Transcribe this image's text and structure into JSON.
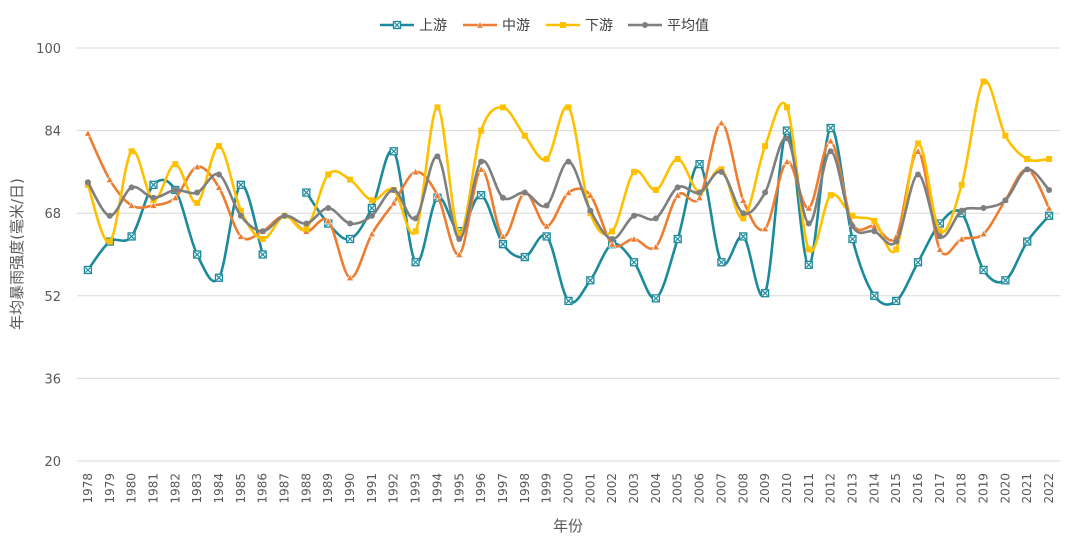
{
  "chart_data": {
    "type": "line",
    "title": "",
    "xlabel": "年份",
    "ylabel": "年均暴雨强度(毫米/日)",
    "ylim": [
      20,
      100
    ],
    "yticks": [
      20,
      36,
      52,
      68,
      84,
      100
    ],
    "grid": true,
    "legend_position": "top",
    "categories": [
      "1978",
      "1979",
      "1980",
      "1981",
      "1982",
      "1983",
      "1984",
      "1985",
      "1986",
      "1987",
      "1988",
      "1989",
      "1990",
      "1991",
      "1992",
      "1993",
      "1994",
      "1995",
      "1996",
      "1997",
      "1998",
      "1999",
      "2000",
      "2001",
      "2002",
      "2003",
      "2004",
      "2005",
      "2006",
      "2007",
      "2008",
      "2009",
      "2010",
      "2011",
      "2012",
      "2013",
      "2014",
      "2015",
      "2016",
      "2017",
      "2018",
      "2019",
      "2020",
      "2021",
      "2022"
    ],
    "series": [
      {
        "name": "上游",
        "color": "#1B8A9C",
        "marker": "box-x",
        "values": [
          57,
          62.5,
          63.5,
          73.5,
          72.5,
          60,
          55.5,
          73.5,
          60,
          null,
          72,
          66,
          63,
          69,
          80,
          58.5,
          71,
          64.5,
          71.5,
          62,
          59.5,
          63.5,
          51,
          55,
          62,
          58.5,
          51.5,
          63,
          77.5,
          58.5,
          63.5,
          52.5,
          84,
          58,
          84.5,
          63,
          52,
          51,
          58.5,
          66,
          68,
          57,
          55,
          62.5,
          67.5
        ]
      },
      {
        "name": "中游",
        "color": "#ED7D31",
        "marker": "triangle",
        "values": [
          83.5,
          74.5,
          69.5,
          69.5,
          71,
          77,
          73,
          63.5,
          64.5,
          67.5,
          64.5,
          66.5,
          55.5,
          64,
          70,
          76,
          71.5,
          60,
          76.5,
          63.5,
          72,
          65.5,
          72,
          71.5,
          62,
          63,
          61.5,
          71.5,
          71,
          85.5,
          70.5,
          65,
          78,
          69,
          82,
          66,
          65.5,
          63.5,
          80,
          61,
          63,
          64,
          70.5,
          76.5,
          69
        ]
      },
      {
        "name": "下游",
        "color": "#FFC000",
        "marker": "square",
        "values": [
          73.5,
          62.5,
          80,
          70.5,
          77.5,
          70,
          81,
          68.5,
          63,
          67.5,
          65,
          75.5,
          74.5,
          70.5,
          72.5,
          64.5,
          88.5,
          64,
          84,
          88.5,
          83,
          78.5,
          88.5,
          68,
          64.5,
          76,
          72.5,
          78.5,
          72,
          76.5,
          67,
          81,
          88.5,
          61,
          71.5,
          67.5,
          66.5,
          61,
          81.5,
          64.5,
          73.5,
          93.5,
          83,
          78.5,
          78.5
        ]
      },
      {
        "name": "平均值",
        "color": "#7F7F7F",
        "marker": "circle",
        "values": [
          74,
          67.5,
          73,
          71,
          72.5,
          72,
          75.5,
          67.5,
          64.5,
          67.5,
          66,
          69,
          66,
          67.5,
          72.5,
          67,
          79,
          63,
          78,
          71,
          72,
          69.5,
          78,
          68.5,
          63,
          67.5,
          67,
          73,
          72,
          76,
          68,
          72,
          82.5,
          66,
          80,
          65.5,
          64.5,
          62.5,
          75.5,
          63.5,
          68.5,
          69,
          70.5,
          76.5,
          72.5
        ]
      }
    ]
  }
}
